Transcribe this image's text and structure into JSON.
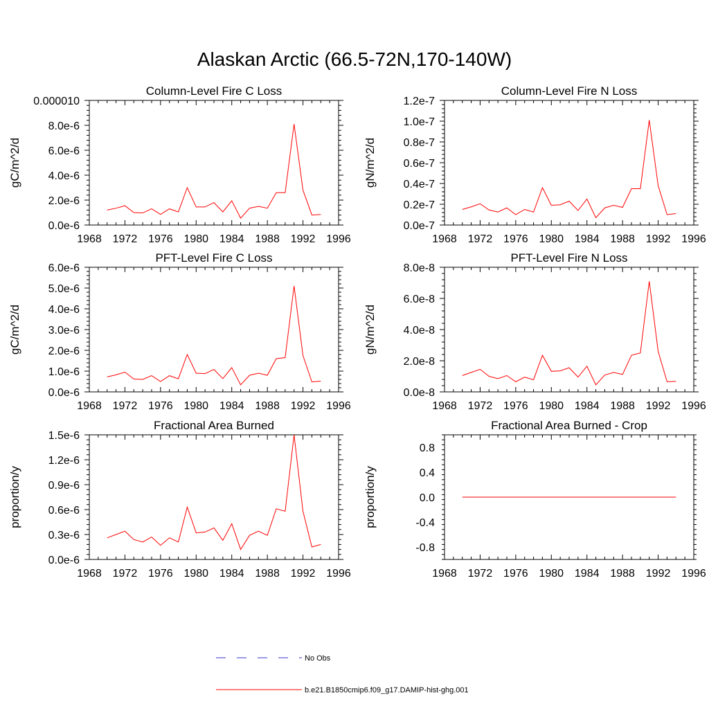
{
  "figure_title": "Alaskan Arctic (66.5-72N,170-140W)",
  "colors": {
    "model_line": "#ff0000",
    "obs_line": "#3333cc",
    "axis": "#000000"
  },
  "legend": [
    {
      "label": "No Obs",
      "style": "dashed",
      "color": "#3333cc"
    },
    {
      "label": "b.e21.B1850cmip6.f09_g17.DAMIP-hist-ghg.001",
      "style": "solid",
      "color": "#ff0000"
    }
  ],
  "chart_data": [
    {
      "type": "line",
      "title": "Column-Level Fire C Loss",
      "ylabel": "gC/m^2/d",
      "xlim": [
        1968,
        1996
      ],
      "ylim": [
        0,
        1e-05
      ],
      "xticks": [
        1968,
        1972,
        1976,
        1980,
        1984,
        1988,
        1992,
        1996
      ],
      "xtick_labels": [
        "1968",
        "1972",
        "1976",
        "1980",
        "1984",
        "1988",
        "1992",
        "1996"
      ],
      "yticks": [
        0,
        2e-06,
        4e-06,
        6e-06,
        8e-06,
        1e-05
      ],
      "ytick_labels": [
        "0.0e-6",
        "2.0e-6",
        "4.0e-6",
        "6.0e-6",
        "8.0e-6",
        "0.000010"
      ],
      "x": [
        1970,
        1971,
        1972,
        1973,
        1974,
        1975,
        1976,
        1977,
        1978,
        1979,
        1980,
        1981,
        1982,
        1983,
        1984,
        1985,
        1986,
        1987,
        1988,
        1989,
        1990,
        1991,
        1992,
        1993,
        1994
      ],
      "series": [
        {
          "name": "b.e21.B1850cmip6.f09_g17.DAMIP-hist-ghg.001",
          "values": [
            1.2e-06,
            1.35e-06,
            1.55e-06,
            1e-06,
            9.7e-07,
            1.3e-06,
            8.5e-07,
            1.3e-06,
            1.05e-06,
            3e-06,
            1.45e-06,
            1.45e-06,
            1.8e-06,
            1.05e-06,
            1.95e-06,
            5.5e-07,
            1.35e-06,
            1.5e-06,
            1.35e-06,
            2.6e-06,
            2.6e-06,
            8.1e-06,
            2.8e-06,
            8e-07,
            8.5e-07
          ]
        }
      ]
    },
    {
      "type": "line",
      "title": "Column-Level Fire N Loss",
      "ylabel": "gN/m^2/d",
      "xlim": [
        1968,
        1996
      ],
      "ylim": [
        0,
        1.2e-07
      ],
      "xticks": [
        1968,
        1972,
        1976,
        1980,
        1984,
        1988,
        1992,
        1996
      ],
      "xtick_labels": [
        "1968",
        "1972",
        "1976",
        "1980",
        "1984",
        "1988",
        "1992",
        "1996"
      ],
      "yticks": [
        0,
        2e-08,
        4e-08,
        6e-08,
        8e-08,
        1e-07,
        1.2e-07
      ],
      "ytick_labels": [
        "0.0e-7",
        "0.2e-7",
        "0.4e-7",
        "0.6e-7",
        "0.8e-7",
        "1.0e-7",
        "1.2e-7"
      ],
      "x": [
        1970,
        1971,
        1972,
        1973,
        1974,
        1975,
        1976,
        1977,
        1978,
        1979,
        1980,
        1981,
        1982,
        1983,
        1984,
        1985,
        1986,
        1987,
        1988,
        1989,
        1990,
        1991,
        1992,
        1993,
        1994
      ],
      "series": [
        {
          "name": "b.e21.B1850cmip6.f09_g17.DAMIP-hist-ghg.001",
          "values": [
            1.5e-08,
            1.75e-08,
            2.05e-08,
            1.45e-08,
            1.25e-08,
            1.65e-08,
            1e-08,
            1.5e-08,
            1.25e-08,
            3.6e-08,
            1.9e-08,
            1.95e-08,
            2.3e-08,
            1.4e-08,
            2.5e-08,
            7e-09,
            1.65e-08,
            1.9e-08,
            1.7e-08,
            3.5e-08,
            3.5e-08,
            1.01e-07,
            3.8e-08,
            1e-08,
            1.1e-08
          ]
        }
      ]
    },
    {
      "type": "line",
      "title": "PFT-Level Fire C Loss",
      "ylabel": "gC/m^2/d",
      "xlim": [
        1968,
        1996
      ],
      "ylim": [
        0,
        6e-06
      ],
      "xticks": [
        1968,
        1972,
        1976,
        1980,
        1984,
        1988,
        1992,
        1996
      ],
      "xtick_labels": [
        "1968",
        "1972",
        "1976",
        "1980",
        "1984",
        "1988",
        "1992",
        "1996"
      ],
      "yticks": [
        0,
        1e-06,
        2e-06,
        3e-06,
        4e-06,
        5e-06,
        6e-06
      ],
      "ytick_labels": [
        "0.0e-6",
        "1.0e-6",
        "2.0e-6",
        "3.0e-6",
        "4.0e-6",
        "5.0e-6",
        "6.0e-6"
      ],
      "x": [
        1970,
        1971,
        1972,
        1973,
        1974,
        1975,
        1976,
        1977,
        1978,
        1979,
        1980,
        1981,
        1982,
        1983,
        1984,
        1985,
        1986,
        1987,
        1988,
        1989,
        1990,
        1991,
        1992,
        1993,
        1994
      ],
      "series": [
        {
          "name": "b.e21.B1850cmip6.f09_g17.DAMIP-hist-ghg.001",
          "values": [
            7.2e-07,
            8.2e-07,
            9.5e-07,
            6.2e-07,
            6e-07,
            7.8e-07,
            5e-07,
            7.8e-07,
            6.3e-07,
            1.8e-06,
            9e-07,
            8.8e-07,
            1.08e-06,
            6.4e-07,
            1.17e-06,
            3.4e-07,
            8e-07,
            9e-07,
            8e-07,
            1.6e-06,
            1.65e-06,
            5.1e-06,
            1.75e-06,
            4.8e-07,
            5.2e-07
          ]
        }
      ]
    },
    {
      "type": "line",
      "title": "PFT-Level Fire N Loss",
      "ylabel": "gN/m^2/d",
      "xlim": [
        1968,
        1996
      ],
      "ylim": [
        0,
        8e-08
      ],
      "xticks": [
        1968,
        1972,
        1976,
        1980,
        1984,
        1988,
        1992,
        1996
      ],
      "xtick_labels": [
        "1968",
        "1972",
        "1976",
        "1980",
        "1984",
        "1988",
        "1992",
        "1996"
      ],
      "yticks": [
        0,
        2e-08,
        4e-08,
        6e-08,
        8e-08
      ],
      "ytick_labels": [
        "0.0e-8",
        "2.0e-8",
        "4.0e-8",
        "6.0e-8",
        "8.0e-8"
      ],
      "x": [
        1970,
        1971,
        1972,
        1973,
        1974,
        1975,
        1976,
        1977,
        1978,
        1979,
        1980,
        1981,
        1982,
        1983,
        1984,
        1985,
        1986,
        1987,
        1988,
        1989,
        1990,
        1991,
        1992,
        1993,
        1994
      ],
      "series": [
        {
          "name": "b.e21.B1850cmip6.f09_g17.DAMIP-hist-ghg.001",
          "values": [
            1.05e-08,
            1.25e-08,
            1.45e-08,
            1e-08,
            8.5e-09,
            1.05e-08,
            6.5e-09,
            9.5e-09,
            7.8e-09,
            2.35e-08,
            1.32e-08,
            1.35e-08,
            1.55e-08,
            9.5e-09,
            1.65e-08,
            4.5e-09,
            1.08e-08,
            1.25e-08,
            1.12e-08,
            2.35e-08,
            2.5e-08,
            7.1e-08,
            2.6e-08,
            6.5e-09,
            6.8e-09
          ]
        }
      ]
    },
    {
      "type": "line",
      "title": "Fractional Area Burned",
      "ylabel": "proportion/y",
      "xlim": [
        1968,
        1996
      ],
      "ylim": [
        0,
        1.5e-06
      ],
      "xticks": [
        1968,
        1972,
        1976,
        1980,
        1984,
        1988,
        1992,
        1996
      ],
      "xtick_labels": [
        "1968",
        "1972",
        "1976",
        "1980",
        "1984",
        "1988",
        "1992",
        "1996"
      ],
      "yticks": [
        0,
        3e-07,
        6e-07,
        9e-07,
        1.2e-06,
        1.5e-06
      ],
      "ytick_labels": [
        "0.0e-6",
        "0.3e-6",
        "0.6e-6",
        "0.9e-6",
        "1.2e-6",
        "1.5e-6"
      ],
      "x": [
        1970,
        1971,
        1972,
        1973,
        1974,
        1975,
        1976,
        1977,
        1978,
        1979,
        1980,
        1981,
        1982,
        1983,
        1984,
        1985,
        1986,
        1987,
        1988,
        1989,
        1990,
        1991,
        1992,
        1993,
        1994
      ],
      "series": [
        {
          "name": "b.e21.B1850cmip6.f09_g17.DAMIP-hist-ghg.001",
          "values": [
            2.6e-07,
            3e-07,
            3.4e-07,
            2.4e-07,
            2.1e-07,
            2.7e-07,
            1.7e-07,
            2.6e-07,
            2.1e-07,
            6.3e-07,
            3.2e-07,
            3.3e-07,
            3.8e-07,
            2.3e-07,
            4.3e-07,
            1.2e-07,
            2.9e-07,
            3.4e-07,
            2.9e-07,
            6.1e-07,
            5.8e-07,
            1.5e-06,
            5.8e-07,
            1.5e-07,
            1.8e-07
          ]
        }
      ]
    },
    {
      "type": "line",
      "title": "Fractional Area Burned - Crop",
      "ylabel": "proportion/y",
      "xlim": [
        1968,
        1996
      ],
      "ylim": [
        -1.0,
        1.0
      ],
      "xticks": [
        1968,
        1972,
        1976,
        1980,
        1984,
        1988,
        1992,
        1996
      ],
      "xtick_labels": [
        "1968",
        "1972",
        "1976",
        "1980",
        "1984",
        "1988",
        "1992",
        "1996"
      ],
      "yticks": [
        -0.8,
        -0.4,
        0,
        0.4,
        0.8
      ],
      "ytick_labels": [
        "-0.8",
        "-0.4",
        "0.0",
        "0.4",
        "0.8"
      ],
      "x": [
        1970,
        1971,
        1972,
        1973,
        1974,
        1975,
        1976,
        1977,
        1978,
        1979,
        1980,
        1981,
        1982,
        1983,
        1984,
        1985,
        1986,
        1987,
        1988,
        1989,
        1990,
        1991,
        1992,
        1993,
        1994
      ],
      "series": [
        {
          "name": "b.e21.B1850cmip6.f09_g17.DAMIP-hist-ghg.001",
          "values": [
            0,
            0,
            0,
            0,
            0,
            0,
            0,
            0,
            0,
            0,
            0,
            0,
            0,
            0,
            0,
            0,
            0,
            0,
            0,
            0,
            0,
            0,
            0,
            0,
            0
          ]
        }
      ]
    }
  ]
}
